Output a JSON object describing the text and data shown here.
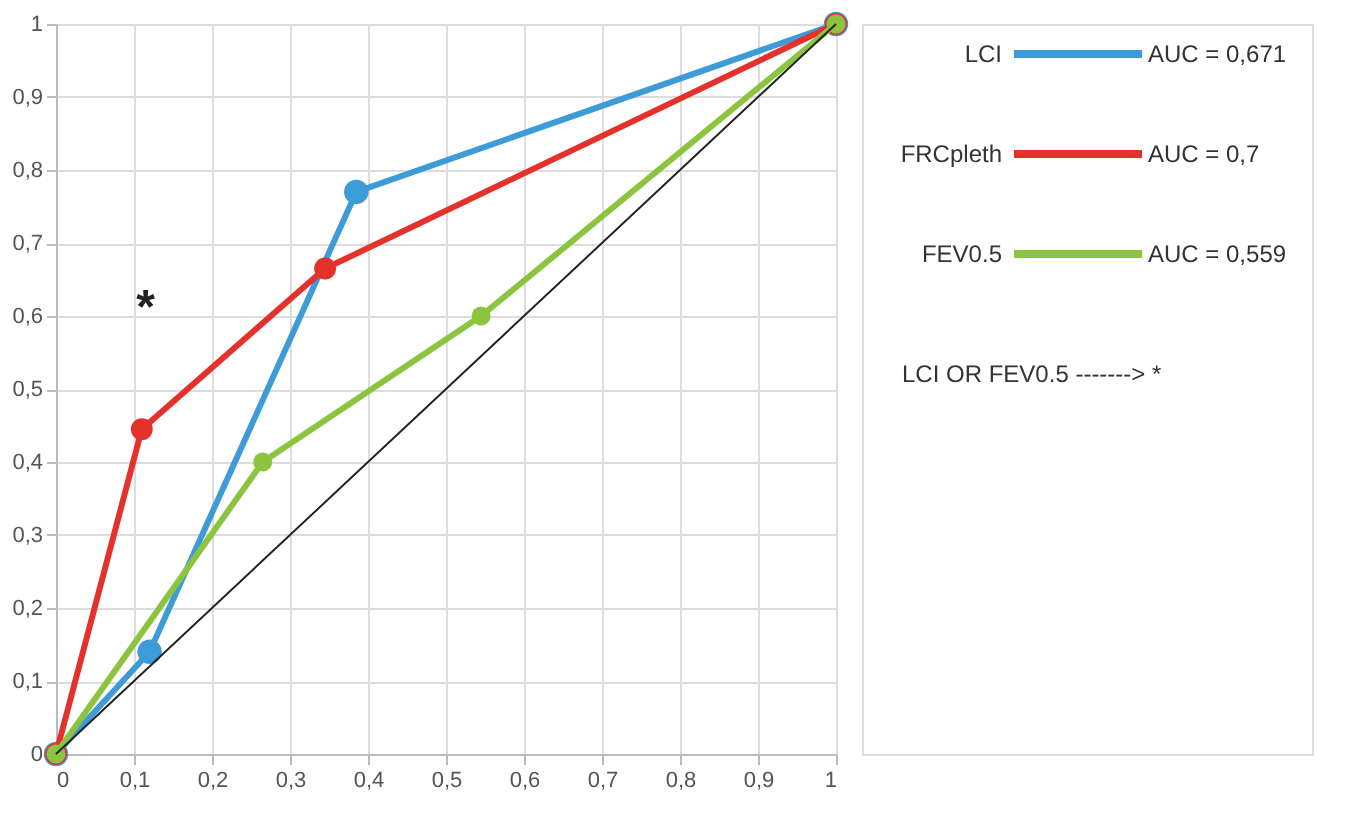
{
  "chart_data": {
    "type": "line",
    "series": [
      {
        "name": "LCI",
        "color": "#3d9bd8",
        "x": [
          0,
          0.12,
          0.385,
          1
        ],
        "values": [
          0,
          0.14,
          0.77,
          1
        ]
      },
      {
        "name": "FRCpleth",
        "color": "#e5312b",
        "x": [
          0,
          0.11,
          0.345,
          1
        ],
        "values": [
          0,
          0.445,
          0.665,
          1
        ]
      },
      {
        "name": "FEV0.5",
        "color": "#8dc43f",
        "x": [
          0,
          0.265,
          0.545,
          1
        ],
        "values": [
          0,
          0.4,
          0.6,
          1
        ]
      },
      {
        "color": "#222222",
        "x": [
          0,
          1
        ],
        "values": [
          0,
          1
        ],
        "marker": "none"
      }
    ],
    "xlim": [
      0,
      1
    ],
    "ylim": [
      0,
      1
    ],
    "xticks": [
      0,
      {
        "value": 0.1,
        "label": "0,1"
      },
      {
        "value": 0.2,
        "label": "0,2"
      },
      {
        "value": 0.3,
        "label": "0,3"
      },
      {
        "value": 0.4,
        "label": "0,4"
      },
      {
        "value": 0.5,
        "label": "0,5"
      },
      {
        "value": 0.6,
        "label": "0,6"
      },
      {
        "value": 0.7,
        "label": "0,7"
      },
      {
        "value": 0.8,
        "label": "0,8"
      },
      {
        "value": 0.9,
        "label": "0,9"
      },
      1
    ],
    "yticks": [
      0,
      {
        "value": 0.1,
        "label": "0,1"
      },
      {
        "value": 0.2,
        "label": "0,2"
      },
      {
        "value": 0.3,
        "label": "0,3"
      },
      {
        "value": 0.4,
        "label": "0,4"
      },
      {
        "value": 0.5,
        "label": "0,5"
      },
      {
        "value": 0.6,
        "label": "0,6"
      },
      {
        "value": 0.7,
        "label": "0,7"
      },
      {
        "value": 0.8,
        "label": "0,8"
      },
      {
        "value": 0.9,
        "label": "0,9"
      },
      1
    ],
    "annotations": [
      "AUC =  0,671",
      "AUC =  0,7",
      "AUC =  0,559",
      "LCI OR FEV0.5 ------->  *",
      "*"
    ],
    "grid": true,
    "legend": "right",
    "marker": "circle",
    "line_style": "solid"
  }
}
